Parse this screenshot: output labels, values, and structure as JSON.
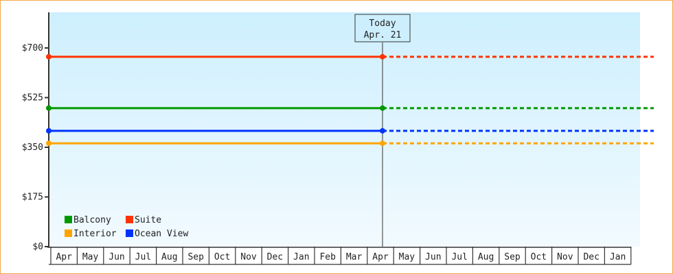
{
  "chart_data": {
    "type": "line",
    "title": "",
    "xlabel": "",
    "ylabel": "",
    "ylim": [
      0,
      825
    ],
    "y_ticks": [
      0,
      175,
      350,
      525,
      700
    ],
    "y_tick_labels": [
      "$0",
      "$175",
      "$350",
      "$525",
      "$700"
    ],
    "x_tick_labels": [
      "Apr",
      "May",
      "Jun",
      "Jul",
      "Aug",
      "Sep",
      "Oct",
      "Nov",
      "Dec",
      "Jan",
      "Feb",
      "Mar",
      "Apr",
      "May",
      "Jun",
      "Jul",
      "Aug",
      "Sep",
      "Oct",
      "Nov",
      "Dec",
      "Jan"
    ],
    "grid": false,
    "today_marker": {
      "line1": "Today",
      "line2": "Apr. 21",
      "month_index": 12.6
    },
    "legend_position": "bottom-left",
    "series": [
      {
        "name": "Balcony",
        "color": "#009900",
        "value": 488
      },
      {
        "name": "Suite",
        "color": "#ff3300",
        "value": 669
      },
      {
        "name": "Interior",
        "color": "#ffa500",
        "value": 364
      },
      {
        "name": "Ocean View",
        "color": "#0033ff",
        "value": 408
      }
    ],
    "projection_style": "dashed after today",
    "background_gradient": [
      "#cdeffd",
      "#f2faff"
    ],
    "frame_border_color": "#f0a848"
  }
}
